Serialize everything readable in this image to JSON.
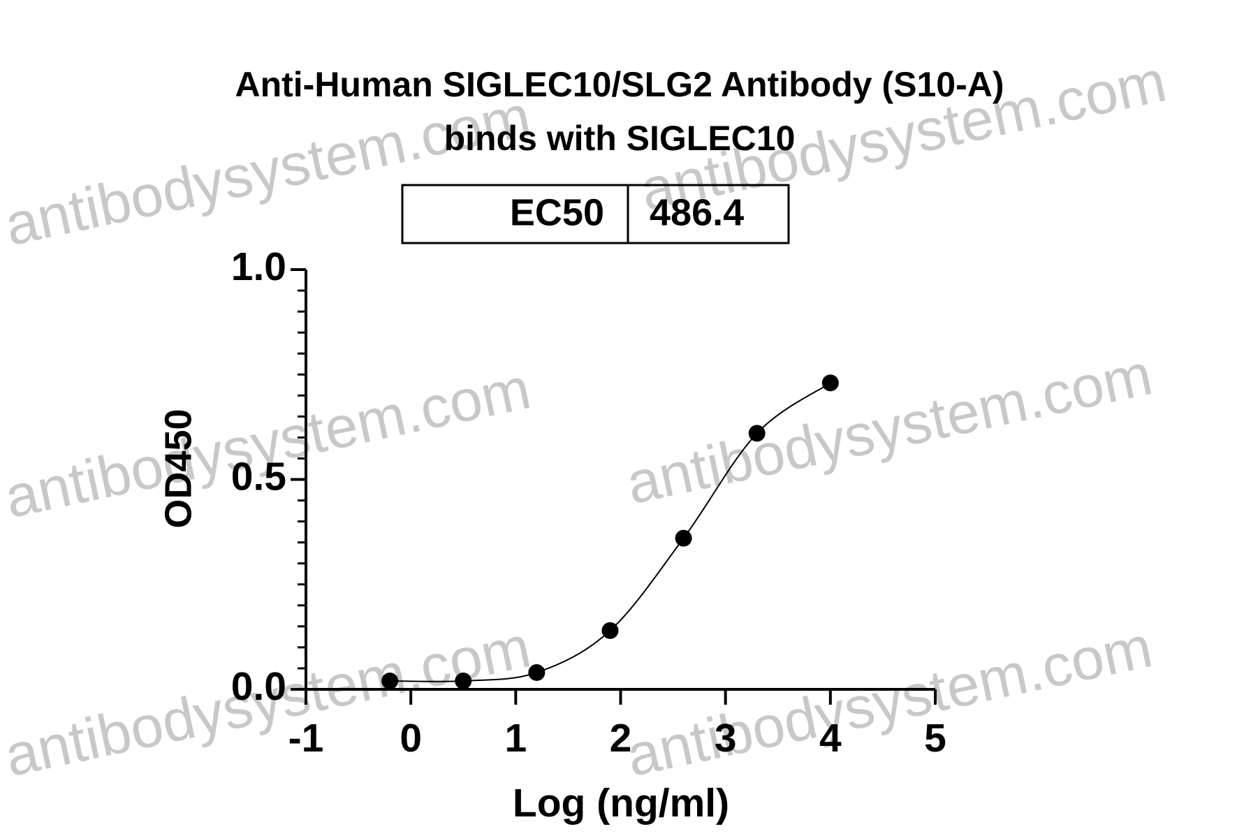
{
  "chart_data": {
    "type": "line",
    "title": [
      "Anti-Human SIGLEC10/SLG2 Antibody (S10-A)",
      "binds with SIGLEC10"
    ],
    "table": {
      "label": "EC50",
      "value": "486.4"
    },
    "xlabel": "Log (ng/ml)",
    "ylabel": "OD450",
    "watermark": "antibodysystem.com",
    "x": [
      -0.2,
      0.5,
      1.2,
      1.9,
      2.6,
      3.3,
      4.0
    ],
    "series": [
      {
        "name": "SIGLEC10",
        "color": "#000000",
        "values": [
          0.02,
          0.02,
          0.04,
          0.14,
          0.36,
          0.61,
          0.73
        ]
      }
    ],
    "xlim": [
      -1,
      5
    ],
    "xticks": [
      -1,
      0,
      1,
      2,
      3,
      4,
      5
    ],
    "ylim": [
      0,
      1
    ],
    "yticks": [
      {
        "value": 0,
        "label": "0.0"
      },
      {
        "value": 0.5,
        "label": "0.5"
      },
      {
        "value": 1,
        "label": "1.0"
      }
    ],
    "yminorticks": [
      0.05,
      0.1,
      0.15,
      0.2,
      0.25,
      0.3,
      0.35,
      0.4,
      0.45,
      0.55,
      0.6,
      0.65,
      0.7,
      0.75,
      0.8,
      0.85,
      0.9,
      0.95
    ]
  }
}
